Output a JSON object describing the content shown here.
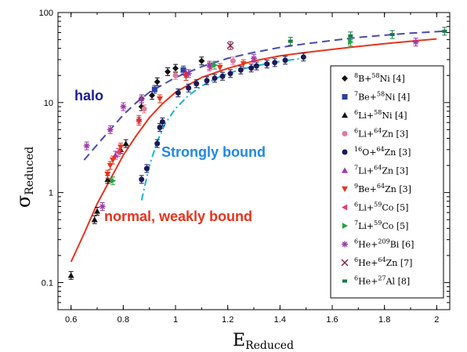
{
  "chart_data": {
    "type": "scatter",
    "xlabel": "E",
    "xlabel_sub": "Reduced",
    "ylabel": "σ",
    "ylabel_sub": "Reduced",
    "xlim": [
      0.55,
      2.05
    ],
    "ylim": [
      0.05,
      100
    ],
    "yscale": "log",
    "xticks": [
      "0.6",
      "0.8",
      "1",
      "1.2",
      "1.4",
      "1.6",
      "1.8",
      "2"
    ],
    "yticks": [
      "0.1",
      "1",
      "10",
      "100"
    ],
    "grid": false,
    "legend_position": "right",
    "annotations": [
      {
        "text": "halo",
        "color": "#1a1a9a"
      },
      {
        "text": "Strongly bound",
        "color": "#1e88e5"
      },
      {
        "text": "normal, weakly bound",
        "color": "#e8331c"
      }
    ],
    "curves": [
      {
        "style": "dashed",
        "color": "#4a4ab0",
        "x": [
          0.65,
          0.7,
          0.75,
          0.8,
          0.85,
          0.9,
          1.0,
          1.1,
          1.2,
          1.3,
          1.4,
          1.5,
          1.6,
          1.7,
          1.8,
          1.9,
          2.03
        ],
        "y": [
          2.3,
          3.4,
          5.0,
          7.3,
          10.0,
          13.0,
          19.0,
          25.0,
          31.0,
          36.0,
          41.0,
          45.0,
          49.0,
          53.0,
          56.0,
          59.0,
          62.0
        ]
      },
      {
        "style": "solid",
        "color": "#e8331c",
        "x": [
          0.6,
          0.65,
          0.7,
          0.75,
          0.8,
          0.85,
          0.9,
          0.95,
          1.0,
          1.1,
          1.2,
          1.3,
          1.4,
          1.5,
          1.6,
          1.7,
          1.8,
          1.9,
          2.0
        ],
        "y": [
          0.17,
          0.35,
          0.75,
          1.4,
          2.6,
          4.3,
          6.8,
          9.7,
          13.0,
          19.0,
          24.0,
          29.0,
          33.0,
          36.0,
          39.0,
          42.0,
          45.0,
          48.0,
          51.0
        ]
      },
      {
        "style": "dashdot",
        "color": "#19b4d6",
        "x": [
          0.87,
          0.9,
          0.93,
          0.96,
          1.0,
          1.05,
          1.1,
          1.15,
          1.2,
          1.25,
          1.3,
          1.35,
          1.4,
          1.45,
          1.49
        ],
        "y": [
          0.82,
          2.0,
          3.7,
          5.8,
          8.6,
          12.0,
          15.2,
          18.3,
          21.0,
          23.3,
          25.3,
          27.0,
          28.6,
          30.0,
          31.0
        ]
      }
    ],
    "series": [
      {
        "name": "8B+58Ni [4]",
        "marker": "diamond",
        "color": "#111111",
        "x": [
          0.87,
          0.87,
          0.91,
          0.93,
          0.97,
          1.0,
          1.1
        ],
        "y": [
          11.0,
          9.0,
          12.0,
          17.0,
          22.0,
          24.0,
          29.0
        ]
      },
      {
        "name": "7Be+58Ni [4]",
        "marker": "square",
        "color": "#2b3fa0",
        "x": [
          0.92,
          1.03
        ],
        "y": [
          14.0,
          23.0
        ]
      },
      {
        "name": "6Li+58Ni [4]",
        "marker": "triangle",
        "color": "#111111",
        "x": [
          0.6,
          0.69,
          0.7,
          0.74,
          0.79,
          0.81
        ],
        "y": [
          0.12,
          0.5,
          0.62,
          1.4,
          3.0,
          3.5
        ]
      },
      {
        "name": "6Li+64Zn [3]",
        "marker": "circle",
        "color": "#e07a9a",
        "x": [
          0.88,
          1.0,
          1.22
        ],
        "y": [
          8.5,
          20.0,
          29.0
        ]
      },
      {
        "name": "16O+64Zn [3]",
        "marker": "circle",
        "color": "#1a1a5a",
        "x": [
          0.87,
          0.89,
          0.93,
          0.94,
          0.95,
          1.01,
          1.05,
          1.08,
          1.12,
          1.15,
          1.18,
          1.21,
          1.25,
          1.29,
          1.31,
          1.35,
          1.38,
          1.42,
          1.49
        ],
        "y": [
          1.4,
          1.85,
          3.5,
          5.3,
          6.1,
          12.8,
          14.5,
          16.2,
          17.5,
          18.6,
          19.6,
          21.0,
          23.0,
          24.2,
          25.5,
          26.8,
          27.8,
          29.5,
          32.0
        ]
      },
      {
        "name": "7Li+64Zn [3]",
        "marker": "triangle",
        "color": "#9b3aa8",
        "x": [
          0.77,
          0.86,
          1.04
        ],
        "y": [
          2.6,
          6.5,
          21.0
        ]
      },
      {
        "name": "9Be+64Zn [3]",
        "marker": "triangle-down",
        "color": "#e8331c",
        "x": [
          0.74,
          0.75,
          0.76,
          0.79,
          0.86,
          0.94,
          1.04,
          1.17,
          1.26
        ],
        "y": [
          1.6,
          2.0,
          2.3,
          3.2,
          6.2,
          11.0,
          19.5,
          24.5,
          27.0
        ]
      },
      {
        "name": "6Li+59Co [5]",
        "marker": "triangle-left",
        "color": "#e0407a",
        "x": [
          0.78,
          1.13
        ],
        "y": [
          2.8,
          25.0
        ]
      },
      {
        "name": "7Li+59Co [5]",
        "marker": "triangle-right",
        "color": "#22a544",
        "x": [
          0.76,
          1.15,
          1.67
        ],
        "y": [
          1.35,
          26.0,
          47.0
        ]
      },
      {
        "name": "6He+209Bi [6]",
        "marker": "asterisk",
        "color": "#9b3aa8",
        "x": [
          0.66,
          0.72,
          0.75,
          0.8,
          0.87,
          1.05,
          1.13,
          1.3,
          1.92
        ],
        "y": [
          3.3,
          0.7,
          5.0,
          9.0,
          11.0,
          21.0,
          26.0,
          31.0,
          47.0
        ]
      },
      {
        "name": "6He+64Zn [7]",
        "marker": "x",
        "color": "#8a2040",
        "x": [
          1.21
        ],
        "y": [
          43.0
        ]
      },
      {
        "name": "6He+27Al [8]",
        "marker": "square-small",
        "color": "#177a4a",
        "x": [
          1.44,
          1.67,
          1.83,
          2.03
        ],
        "y": [
          48.0,
          55.0,
          57.0,
          62.0
        ]
      }
    ]
  }
}
